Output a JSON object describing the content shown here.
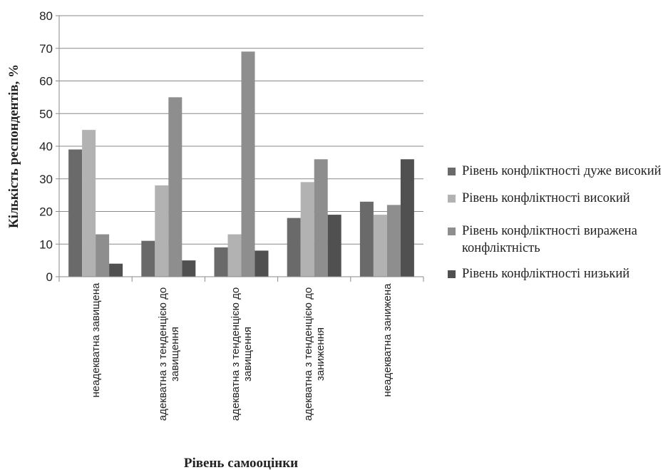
{
  "chart_data": {
    "type": "bar",
    "ylabel": "Кількість респондентів, %",
    "xlabel": "Рівень самооцінки",
    "ylim": [
      0,
      80
    ],
    "yticks": [
      0,
      10,
      20,
      30,
      40,
      50,
      60,
      70,
      80
    ],
    "grid": true,
    "legend_position": "right",
    "categories": [
      [
        "неадекватна завищена"
      ],
      [
        "адекватна з тенденцією до",
        "завищення"
      ],
      [
        "адекватна з тенденцією до",
        "завищення"
      ],
      [
        "адекватна з тенденцією до",
        "заниження"
      ],
      [
        "неадекватна занижена"
      ]
    ],
    "series": [
      {
        "name": "Рівень конфліктності дуже високий",
        "color": "#6a6a6a",
        "values": [
          39,
          11,
          9,
          18,
          23
        ]
      },
      {
        "name": "Рівень конфліктності високий",
        "color": "#b2b2b2",
        "values": [
          45,
          28,
          13,
          29,
          19
        ]
      },
      {
        "name": "Рівень конфліктності виражена конфліктність",
        "color": "#8e8e8e",
        "values": [
          13,
          55,
          69,
          36,
          22
        ]
      },
      {
        "name": "Рівень конфліктності низький",
        "color": "#505050",
        "values": [
          4,
          5,
          8,
          19,
          36
        ]
      }
    ]
  }
}
